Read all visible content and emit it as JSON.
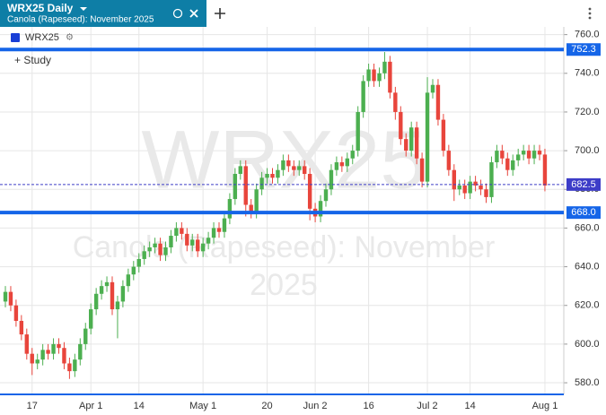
{
  "chart_data": {
    "type": "candlestick",
    "title": "WRX25 Daily",
    "subtitle": "Canola (Rapeseed): November 2025",
    "watermark": [
      "WRX25",
      "Canola (Rapeseed): November",
      "2025"
    ],
    "study_label": "+ Study",
    "categories": [
      null,
      null,
      null,
      null,
      null,
      "17",
      null,
      null,
      null,
      null,
      null,
      null,
      null,
      null,
      null,
      null,
      "Apr 1",
      null,
      null,
      null,
      null,
      null,
      null,
      null,
      null,
      "14",
      null,
      null,
      null,
      null,
      null,
      null,
      null,
      null,
      null,
      null,
      null,
      "May 1",
      null,
      null,
      null,
      null,
      null,
      null,
      null,
      null,
      null,
      null,
      null,
      "20",
      null,
      null,
      null,
      null,
      null,
      null,
      null,
      null,
      "Jun 2",
      null,
      null,
      null,
      null,
      null,
      null,
      null,
      null,
      null,
      "16",
      null,
      null,
      null,
      null,
      null,
      null,
      null,
      null,
      null,
      null,
      "Jul 2",
      null,
      null,
      null,
      null,
      null,
      null,
      null,
      "14",
      null,
      null,
      null,
      null,
      null,
      null,
      null,
      null,
      null,
      null,
      null,
      null,
      null,
      "Aug 1"
    ],
    "series": [
      {
        "name": "WRX25",
        "color": "#1a3fd6",
        "up_color": "#4caf50",
        "down_color": "#e8453c",
        "open": [
          622,
          627,
          620,
          612,
          605,
          595,
          590,
          592,
          597,
          595,
          600,
          598,
          590,
          586,
          592,
          600,
          608,
          618,
          626,
          630,
          632,
          618,
          622,
          630,
          636,
          640,
          644,
          648,
          650,
          652,
          646,
          650,
          656,
          660,
          657,
          651,
          654,
          648,
          652,
          655,
          660,
          658,
          665,
          675,
          688,
          692,
          672,
          668,
          680,
          686,
          688,
          686,
          690,
          695,
          692,
          690,
          692,
          688,
          670,
          666,
          674,
          680,
          690,
          694,
          692,
          696,
          700,
          720,
          736,
          742,
          736,
          740,
          746,
          730,
          720,
          706,
          700,
          712,
          696,
          684,
          730,
          734,
          716,
          700,
          690,
          680,
          682,
          678,
          684,
          682,
          680,
          676,
          694,
          700,
          696,
          690,
          695,
          698,
          700,
          696,
          700,
          698
        ],
        "high": [
          630,
          630,
          623,
          615,
          608,
          598,
          595,
          600,
          600,
          603,
          603,
          601,
          593,
          595,
          603,
          611,
          621,
          629,
          633,
          635,
          635,
          625,
          633,
          639,
          643,
          647,
          651,
          653,
          655,
          655,
          653,
          659,
          663,
          663,
          660,
          657,
          657,
          655,
          658,
          663,
          663,
          668,
          678,
          691,
          695,
          695,
          675,
          683,
          689,
          691,
          691,
          693,
          698,
          698,
          695,
          695,
          695,
          691,
          673,
          677,
          683,
          693,
          697,
          697,
          699,
          703,
          723,
          739,
          745,
          745,
          743,
          751,
          749,
          733,
          723,
          709,
          715,
          715,
          699,
          738,
          737,
          737,
          719,
          703,
          693,
          685,
          685,
          687,
          687,
          685,
          683,
          697,
          703,
          703,
          699,
          698,
          701,
          703,
          703,
          703,
          703,
          701
        ],
        "low": [
          619,
          617,
          609,
          602,
          592,
          584,
          587,
          589,
          592,
          592,
          595,
          587,
          582,
          583,
          589,
          597,
          605,
          615,
          623,
          627,
          615,
          603,
          619,
          627,
          633,
          637,
          641,
          645,
          647,
          643,
          643,
          647,
          653,
          654,
          648,
          648,
          645,
          645,
          649,
          652,
          655,
          655,
          662,
          672,
          685,
          666,
          665,
          665,
          677,
          683,
          683,
          683,
          687,
          689,
          687,
          687,
          685,
          664,
          663,
          663,
          671,
          677,
          687,
          689,
          689,
          693,
          697,
          717,
          733,
          733,
          733,
          737,
          727,
          716,
          703,
          697,
          697,
          693,
          681,
          681,
          727,
          713,
          697,
          687,
          674,
          677,
          675,
          675,
          679,
          677,
          673,
          673,
          691,
          693,
          687,
          687,
          692,
          695,
          693,
          693,
          695,
          679
        ],
        "close": [
          627,
          620,
          612,
          605,
          595,
          590,
          592,
          597,
          595,
          600,
          598,
          590,
          586,
          592,
          600,
          608,
          618,
          626,
          630,
          632,
          618,
          622,
          630,
          636,
          640,
          644,
          648,
          650,
          652,
          646,
          650,
          656,
          660,
          657,
          651,
          654,
          648,
          652,
          655,
          660,
          658,
          665,
          675,
          688,
          692,
          672,
          668,
          680,
          686,
          688,
          686,
          690,
          695,
          692,
          690,
          692,
          688,
          670,
          666,
          674,
          680,
          690,
          694,
          692,
          696,
          700,
          720,
          736,
          742,
          736,
          740,
          746,
          730,
          720,
          706,
          700,
          712,
          696,
          684,
          730,
          734,
          716,
          700,
          690,
          680,
          682,
          678,
          684,
          682,
          680,
          676,
          694,
          700,
          696,
          690,
          695,
          698,
          700,
          696,
          700,
          698,
          682
        ]
      }
    ],
    "levels": [
      {
        "value": 752.3,
        "label": "752.3",
        "color": "#1565e8"
      },
      {
        "value": 668,
        "label": "668.0",
        "color": "#1565e8"
      }
    ],
    "last_price": {
      "value": 682.5,
      "label": "682.5",
      "color": "#3d3dc8"
    },
    "ylim": [
      574,
      764
    ],
    "yticks": [
      {
        "value": 580,
        "label": "580.0"
      },
      {
        "value": 600,
        "label": "600.0"
      },
      {
        "value": 620,
        "label": "620.0"
      },
      {
        "value": 640,
        "label": "640.0"
      },
      {
        "value": 660,
        "label": "660.0"
      },
      {
        "value": 680,
        "label": "680.0"
      },
      {
        "value": 700,
        "label": "700.0"
      },
      {
        "value": 720,
        "label": "720.0"
      },
      {
        "value": 740,
        "label": "740.0"
      },
      {
        "value": 760,
        "label": "760.0"
      }
    ],
    "grid": true
  }
}
